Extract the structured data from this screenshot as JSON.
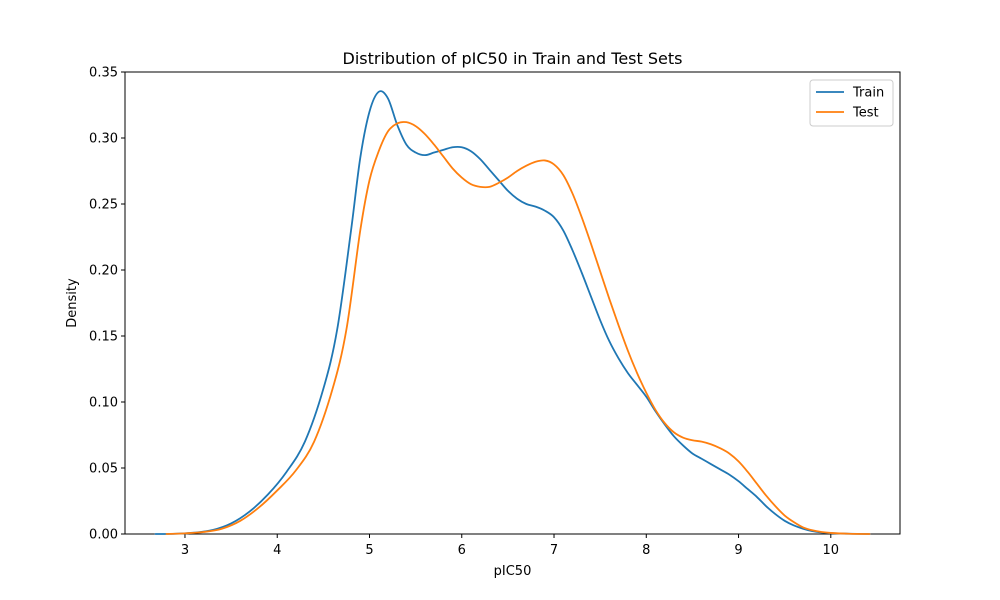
{
  "chart_data": {
    "type": "line",
    "title": "Distribution of pIC50 in Train and Test Sets",
    "xlabel": "pIC50",
    "ylabel": "Density",
    "xlim": [
      2.35,
      10.75
    ],
    "ylim": [
      0,
      0.35
    ],
    "xticks": [
      "3",
      "4",
      "5",
      "6",
      "7",
      "8",
      "9",
      "10"
    ],
    "yticks": [
      "0.00",
      "0.05",
      "0.10",
      "0.15",
      "0.20",
      "0.25",
      "0.30",
      "0.35"
    ],
    "grid": false,
    "legend_position": "top-right",
    "series": [
      {
        "name": "Train",
        "color": "#1f77b4",
        "x": [
          2.68,
          2.9,
          3.1,
          3.3,
          3.5,
          3.7,
          3.9,
          4.1,
          4.3,
          4.5,
          4.65,
          4.8,
          4.9,
          5.0,
          5.1,
          5.2,
          5.3,
          5.4,
          5.5,
          5.6,
          5.7,
          5.8,
          5.9,
          6.0,
          6.1,
          6.2,
          6.3,
          6.4,
          6.5,
          6.6,
          6.7,
          6.8,
          6.9,
          7.0,
          7.1,
          7.2,
          7.3,
          7.4,
          7.5,
          7.6,
          7.7,
          7.8,
          7.9,
          8.0,
          8.1,
          8.2,
          8.3,
          8.4,
          8.5,
          8.6,
          8.7,
          8.8,
          8.9,
          9.0,
          9.1,
          9.2,
          9.3,
          9.4,
          9.5,
          9.6,
          9.7,
          9.8,
          9.9,
          10.0,
          10.2,
          10.42
        ],
        "y": [
          0.0,
          0.0002,
          0.001,
          0.003,
          0.008,
          0.017,
          0.03,
          0.047,
          0.07,
          0.11,
          0.155,
          0.23,
          0.285,
          0.32,
          0.335,
          0.33,
          0.31,
          0.295,
          0.289,
          0.287,
          0.289,
          0.291,
          0.293,
          0.293,
          0.29,
          0.284,
          0.276,
          0.268,
          0.26,
          0.254,
          0.25,
          0.248,
          0.245,
          0.24,
          0.23,
          0.215,
          0.198,
          0.18,
          0.162,
          0.146,
          0.133,
          0.122,
          0.113,
          0.104,
          0.093,
          0.083,
          0.074,
          0.067,
          0.061,
          0.057,
          0.053,
          0.049,
          0.045,
          0.04,
          0.034,
          0.028,
          0.021,
          0.015,
          0.01,
          0.0065,
          0.004,
          0.0022,
          0.0012,
          0.0006,
          0.0002,
          0.0
        ]
      },
      {
        "name": "Test",
        "color": "#ff7f0e",
        "x": [
          2.8,
          3.0,
          3.2,
          3.4,
          3.6,
          3.8,
          4.0,
          4.2,
          4.4,
          4.6,
          4.75,
          4.9,
          5.0,
          5.1,
          5.2,
          5.3,
          5.4,
          5.5,
          5.6,
          5.7,
          5.8,
          5.9,
          6.0,
          6.1,
          6.2,
          6.3,
          6.4,
          6.5,
          6.6,
          6.7,
          6.8,
          6.9,
          7.0,
          7.1,
          7.2,
          7.3,
          7.4,
          7.5,
          7.6,
          7.7,
          7.8,
          7.9,
          8.0,
          8.1,
          8.2,
          8.3,
          8.4,
          8.5,
          8.6,
          8.7,
          8.8,
          8.9,
          9.0,
          9.1,
          9.2,
          9.3,
          9.4,
          9.5,
          9.6,
          9.7,
          9.8,
          9.9,
          10.0,
          10.2,
          10.42
        ],
        "y": [
          0.0,
          0.0005,
          0.0015,
          0.004,
          0.01,
          0.02,
          0.033,
          0.048,
          0.07,
          0.11,
          0.155,
          0.23,
          0.268,
          0.29,
          0.305,
          0.311,
          0.312,
          0.309,
          0.303,
          0.295,
          0.286,
          0.277,
          0.27,
          0.265,
          0.263,
          0.263,
          0.266,
          0.27,
          0.275,
          0.279,
          0.282,
          0.283,
          0.28,
          0.272,
          0.258,
          0.24,
          0.22,
          0.199,
          0.178,
          0.158,
          0.139,
          0.122,
          0.107,
          0.094,
          0.084,
          0.077,
          0.073,
          0.071,
          0.07,
          0.068,
          0.065,
          0.061,
          0.055,
          0.047,
          0.038,
          0.029,
          0.021,
          0.014,
          0.009,
          0.005,
          0.0028,
          0.0015,
          0.0008,
          0.0002,
          0.0
        ]
      }
    ]
  }
}
